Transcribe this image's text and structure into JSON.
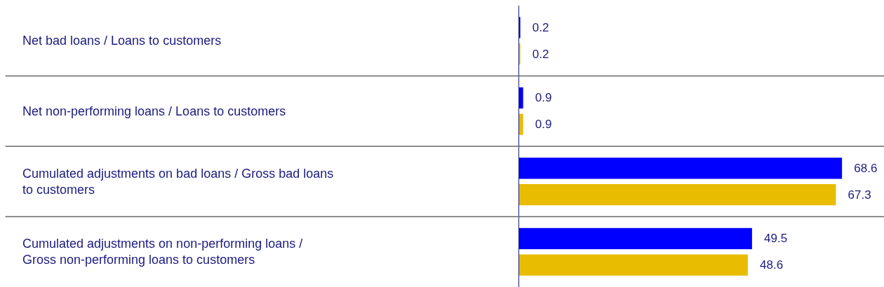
{
  "chart_data": {
    "type": "bar",
    "orientation": "horizontal",
    "categories": [
      "Net bad loans / Loans to customers",
      "Net non-performing loans / Loans to customers",
      "Cumulated adjustments on bad loans / Gross bad loans to customers",
      "Cumulated adjustments on non-performing loans / Gross non-performing loans to customers"
    ],
    "series": [
      {
        "color": "#0000ff",
        "values": [
          0.2,
          0.9,
          68.6,
          49.5
        ]
      },
      {
        "color": "#e8bc00",
        "values": [
          0.2,
          0.9,
          67.3,
          48.6
        ]
      }
    ],
    "data_labels": true,
    "legend": false
  }
}
